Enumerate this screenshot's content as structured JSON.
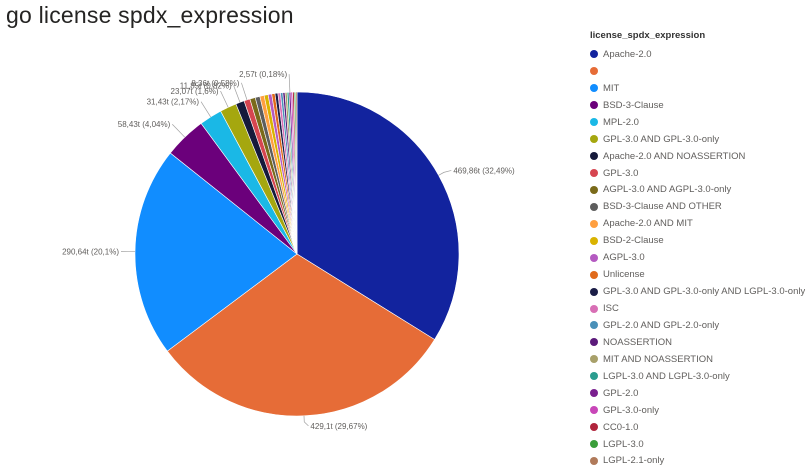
{
  "title": "go license spdx_expression",
  "legend_title": "license_spdx_expression",
  "chart_data": {
    "type": "pie",
    "title": "go license spdx_expression",
    "legend_title": "license_spdx_expression",
    "legend_position": "right",
    "slices": [
      {
        "name": "Apache-2.0",
        "value": 469.86,
        "label": "469,86t (32,49%)",
        "color": "#12239e"
      },
      {
        "name": "",
        "value": 429.1,
        "label": "429,1t (29,67%)",
        "color": "#e66c37"
      },
      {
        "name": "MIT",
        "value": 290.64,
        "label": "290,64t (20,1%)",
        "color": "#118dff"
      },
      {
        "name": "BSD-3-Clause",
        "value": 58.43,
        "label": "58,43t (4,04%)",
        "color": "#6b007b"
      },
      {
        "name": "MPL-2.0",
        "value": 31.43,
        "label": "31,43t (2,17%)",
        "color": "#1ab8e6"
      },
      {
        "name": "GPL-3.0 AND GPL-3.0-only",
        "value": 23.07,
        "label": "23,07t (1,6%)",
        "color": "#a5a70f"
      },
      {
        "name": "Apache-2.0 AND NOASSERTION",
        "value": 11.85,
        "label": "11,85t (0,82%)",
        "color": "#161a3b"
      },
      {
        "name": "GPL-3.0",
        "value": 8.36,
        "label": "8,36t (0,58%)",
        "color": "#d64550"
      },
      {
        "name": "AGPL-3.0 AND AGPL-3.0-only",
        "value": 7.5,
        "label": "",
        "color": "#7a6a1a"
      },
      {
        "name": "BSD-3-Clause AND OTHER",
        "value": 6.5,
        "label": "",
        "color": "#5d5d5d"
      },
      {
        "name": "Apache-2.0 AND MIT",
        "value": 6.0,
        "label": "",
        "color": "#ff9f40"
      },
      {
        "name": "BSD-2-Clause",
        "value": 5.5,
        "label": "",
        "color": "#d9b300"
      },
      {
        "name": "AGPL-3.0",
        "value": 5.0,
        "label": "",
        "color": "#b45ac1"
      },
      {
        "name": "Unlicense",
        "value": 4.5,
        "label": "",
        "color": "#e06a1b"
      },
      {
        "name": "GPL-3.0 AND GPL-3.0-only AND LGPL-3.0-only",
        "value": 4.0,
        "label": "",
        "color": "#1b1d47"
      },
      {
        "name": "ISC",
        "value": 3.6,
        "label": "",
        "color": "#d86fb5"
      },
      {
        "name": "GPL-2.0 AND GPL-2.0-only",
        "value": 3.2,
        "label": "",
        "color": "#4a90b8"
      },
      {
        "name": "NOASSERTION",
        "value": 3.0,
        "label": "",
        "color": "#5b1a7a"
      },
      {
        "name": "MIT AND NOASSERTION",
        "value": 2.8,
        "label": "",
        "color": "#a8a06a"
      },
      {
        "name": "LGPL-3.0 AND LGPL-3.0-only",
        "value": 2.6,
        "label": "",
        "color": "#2a9d8f"
      },
      {
        "name": "GPL-2.0",
        "value": 2.57,
        "label": "2,57t (0,18%)",
        "color": "#7a1f8f"
      },
      {
        "name": "GPL-3.0-only",
        "value": 2.4,
        "label": "",
        "color": "#c846b8"
      },
      {
        "name": "CC0-1.0",
        "value": 2.2,
        "label": "",
        "color": "#b0243c"
      },
      {
        "name": "LGPL-3.0",
        "value": 2.0,
        "label": "",
        "color": "#3a9e3a"
      },
      {
        "name": "LGPL-2.1-only",
        "value": 1.8,
        "label": "",
        "color": "#b07a5a"
      }
    ]
  }
}
